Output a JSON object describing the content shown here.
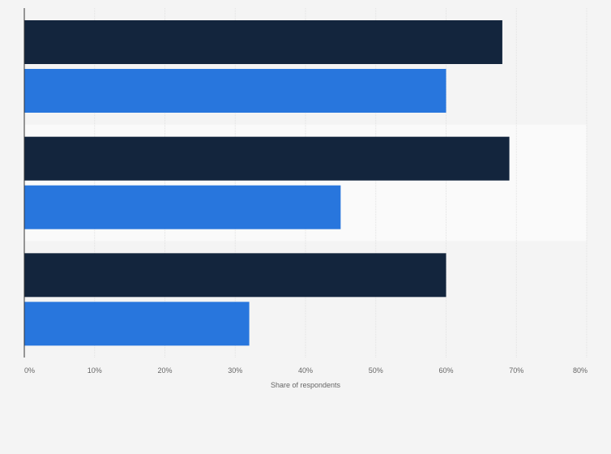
{
  "chart_data": {
    "type": "bar",
    "orientation": "horizontal",
    "title": "",
    "xlabel": "Share of respondents",
    "ylabel": "",
    "xlim": [
      0,
      80
    ],
    "x_ticks": [
      0,
      10,
      20,
      30,
      40,
      50,
      60,
      70,
      80
    ],
    "x_tick_labels": [
      "0%",
      "10%",
      "20%",
      "30%",
      "40%",
      "50%",
      "60%",
      "70%",
      "80%"
    ],
    "grid": true,
    "legend": "none",
    "categories": [
      "",
      "",
      ""
    ],
    "series": [
      {
        "name": "",
        "color": "#13253d",
        "values": [
          68,
          69,
          60
        ]
      },
      {
        "name": "",
        "color": "#2876dd",
        "values": [
          60,
          45,
          32
        ]
      }
    ]
  },
  "colors": {
    "background": "#f4f4f4",
    "band": "#fafafa",
    "grid": "#e2e2e2",
    "axis": "#333333"
  }
}
